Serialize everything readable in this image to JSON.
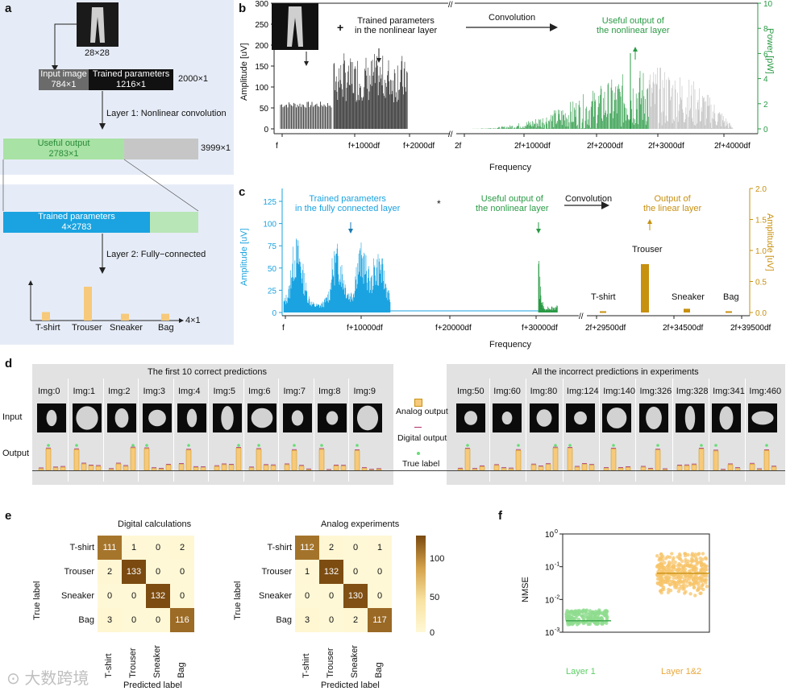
{
  "panels": {
    "a": "a",
    "b": "b",
    "c": "c",
    "d": "d",
    "e": "e",
    "f": "f"
  },
  "a": {
    "input_size": "28×28",
    "input_image_label": "Input image",
    "input_image_dim": "784×1",
    "trained_params_label": "Trained parameters",
    "trained_params_dim": "1216×1",
    "total_dim": "2000×1",
    "layer1": "Layer 1: Nonlinear convolution",
    "useful_label": "Useful output",
    "useful_dim": "2783×1",
    "useful_total": "3999×1",
    "tp2_label": "Trained parameters",
    "tp2_dim": "4×2783",
    "layer2": "Layer 2: Fully−connected",
    "out_dim": "4×1",
    "classes": [
      "T-shirt",
      "Trouser",
      "Sneaker",
      "Bag"
    ],
    "class_values": [
      0.25,
      1.0,
      0.2,
      0.2
    ],
    "colors": {
      "gray": "#6b6b6b",
      "black": "#111111",
      "green": "#a8e2a4",
      "blue": "#1aa3e0",
      "lightgreen": "#b8e6b6",
      "bars": "#f7c97a"
    }
  },
  "b": {
    "plus": "+",
    "trained_nonlinear": [
      "Trained parameters",
      "in the nonlinear layer"
    ],
    "convolution": "Convolution",
    "useful_nonlinear": [
      "Useful output of",
      "the nonlinear layer"
    ],
    "ylabel_left": "Amplitude [uV]",
    "ylabel_right": "Power [pW]",
    "xlabel": "Frequency",
    "left_ticks": [
      "300",
      "250",
      "200",
      "150",
      "100",
      "50",
      "0"
    ],
    "right_ticks": [
      "10",
      "8",
      "6",
      "4",
      "2",
      "0"
    ],
    "xticks_left": [
      "f",
      "f+1000df",
      "f+2000df"
    ],
    "xticks_right": [
      "2f",
      "2f+1000df",
      "2f+2000df",
      "2f+3000df",
      "2f+4000df"
    ],
    "sub": "1",
    "colors": {
      "green": "#2a9a45",
      "gray": "#bdbdbd"
    }
  },
  "c": {
    "trained_fc": [
      "Trained parameters",
      "in the fully connected layer"
    ],
    "star": "*",
    "useful_nonlinear": [
      "Useful output of",
      "the nonlinear layer"
    ],
    "convolution": "Convolution",
    "output_linear": [
      "Output of",
      "the linear layer"
    ],
    "ylabel_left": "Amplitude [uV]",
    "ylabel_right": "Amplitude [uV]",
    "xlabel": "Frequency",
    "left_ticks": [
      "125",
      "100",
      "75",
      "50",
      "25",
      "0"
    ],
    "right_ticks": [
      "2.0",
      "1.5",
      "1.0",
      "0.5",
      "0.0"
    ],
    "xticks_left": [
      "f",
      "f+10000df",
      "f+20000df",
      "f+30000df"
    ],
    "xticks_right": [
      "2f+29500df",
      "2f+34500df",
      "2f+39500df"
    ],
    "sub": "2",
    "bar_labels": [
      "T-shirt",
      "Trouser",
      "Sneaker",
      "Bag"
    ],
    "bar_values": [
      0.02,
      0.78,
      0.06,
      0.02
    ],
    "colors": {
      "blue": "#1aa3e0",
      "green": "#2a9a45",
      "gold": "#c8900f"
    }
  },
  "d": {
    "left_title": "The first 10 correct predictions",
    "right_title": "All the incorrect predictions in experiments",
    "left_imgs": [
      "Img:0",
      "Img:1",
      "Img:2",
      "Img:3",
      "Img:4",
      "Img:5",
      "Img:6",
      "Img:7",
      "Img:8",
      "Img:9"
    ],
    "right_imgs": [
      "Img:50",
      "Img:60",
      "Img:80",
      "Img:124",
      "Img:140",
      "Img:326",
      "Img:328",
      "Img:341",
      "Img:460"
    ],
    "row_input": "Input",
    "row_output": "Output",
    "legend": [
      "Analog output",
      "Digital output",
      "True label"
    ]
  },
  "e": {
    "left_title": "Digital calculations",
    "right_title": "Analog experiments",
    "ylabel": "True label",
    "xlabel": "Predicted label",
    "classes": [
      "T-shirt",
      "Trouser",
      "Sneaker",
      "Bag"
    ],
    "digital": [
      [
        111,
        1,
        0,
        2
      ],
      [
        2,
        133,
        0,
        0
      ],
      [
        0,
        0,
        132,
        0
      ],
      [
        3,
        0,
        0,
        116
      ]
    ],
    "analog": [
      [
        112,
        2,
        0,
        1
      ],
      [
        1,
        132,
        0,
        0
      ],
      [
        0,
        0,
        130,
        0
      ],
      [
        3,
        0,
        2,
        117
      ]
    ],
    "colorbar_ticks": [
      "100",
      "50",
      "0"
    ]
  },
  "f": {
    "ylabel": "NMSE",
    "yticks": [
      "10",
      "10",
      "10",
      "10"
    ],
    "yexp": [
      "0",
      "-1",
      "-2",
      "-3"
    ],
    "x_labels": [
      "Layer 1",
      "Layer 1&2"
    ],
    "colors": {
      "layer1": "#8fdc8f",
      "layer12": "#f7c46a"
    }
  },
  "watermark": "大数跨境"
}
